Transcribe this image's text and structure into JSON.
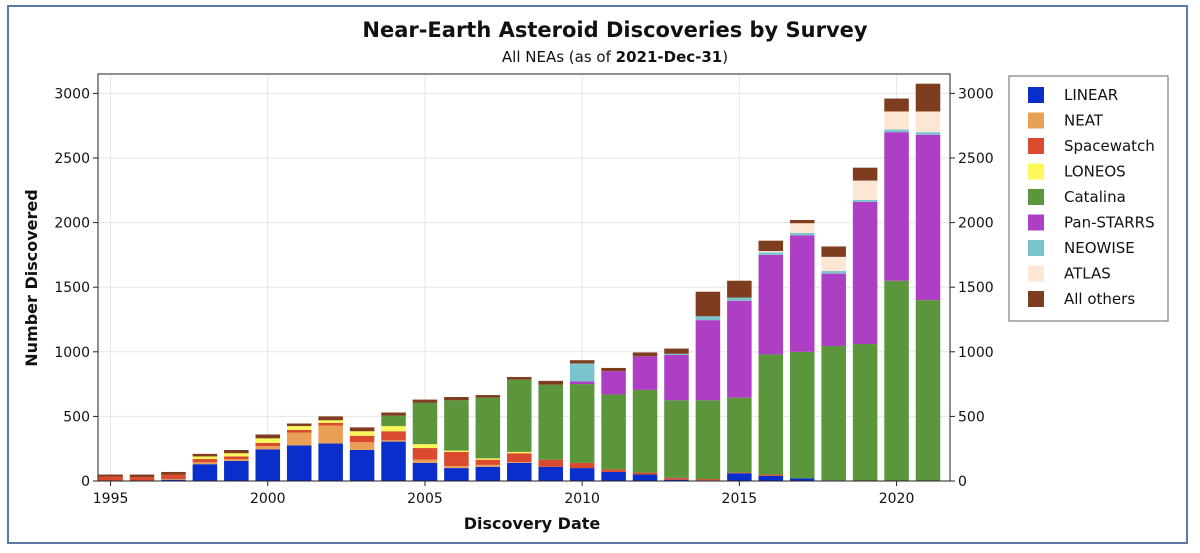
{
  "chart_data": {
    "type": "bar",
    "stacked": true,
    "title": "Near-Earth Asteroid Discoveries by Survey",
    "subtitle_prefix": "All NEAs (as of ",
    "subtitle_date": "2021-Dec-31",
    "subtitle_suffix": ")",
    "xlabel": "Discovery Date",
    "ylabel": "Number Discovered",
    "xlim": [
      1994.6,
      2021.7
    ],
    "ylim": [
      0,
      3150
    ],
    "x_ticks": [
      "1995",
      "2000",
      "2005",
      "2010",
      "2015",
      "2020"
    ],
    "y_ticks": [
      "0",
      "500",
      "1000",
      "1500",
      "2000",
      "2500",
      "3000"
    ],
    "y_ticks_right": [
      "0",
      "500",
      "1000",
      "1500",
      "2000",
      "2500",
      "3000"
    ],
    "grid": true,
    "legend_position": "right",
    "x": [
      1995,
      1996,
      1997,
      1998,
      1999,
      2000,
      2001,
      2002,
      2003,
      2004,
      2005,
      2006,
      2007,
      2008,
      2009,
      2010,
      2011,
      2012,
      2013,
      2014,
      2015,
      2016,
      2017,
      2018,
      2019,
      2020,
      2021
    ],
    "series": [
      {
        "name": "LINEAR",
        "color": "#0a2ecb",
        "values": [
          0,
          0,
          10,
          130,
          155,
          245,
          275,
          290,
          240,
          305,
          140,
          100,
          110,
          140,
          110,
          100,
          70,
          50,
          10,
          5,
          60,
          40,
          20,
          5,
          0,
          0,
          0
        ]
      },
      {
        "name": "NEAT",
        "color": "#e9a056",
        "values": [
          0,
          0,
          5,
          15,
          15,
          25,
          100,
          140,
          60,
          10,
          25,
          15,
          15,
          5,
          0,
          0,
          0,
          0,
          0,
          0,
          0,
          0,
          0,
          0,
          0,
          0,
          0
        ]
      },
      {
        "name": "Spacewatch",
        "color": "#d94a2e",
        "values": [
          35,
          30,
          35,
          25,
          20,
          25,
          20,
          20,
          50,
          70,
          90,
          110,
          40,
          70,
          55,
          40,
          20,
          15,
          15,
          10,
          5,
          10,
          0,
          0,
          0,
          0,
          0
        ]
      },
      {
        "name": "LONEOS",
        "color": "#fbf85a",
        "values": [
          0,
          0,
          0,
          20,
          25,
          35,
          30,
          20,
          35,
          40,
          30,
          10,
          10,
          10,
          0,
          0,
          0,
          0,
          0,
          0,
          0,
          0,
          0,
          0,
          0,
          0,
          0
        ]
      },
      {
        "name": "Catalina",
        "color": "#5b963c",
        "values": [
          0,
          0,
          0,
          0,
          0,
          0,
          0,
          0,
          0,
          80,
          320,
          390,
          470,
          560,
          580,
          610,
          580,
          640,
          600,
          610,
          580,
          930,
          980,
          1040,
          1060,
          1550,
          1400
        ]
      },
      {
        "name": "Pan-STARRS",
        "color": "#ae3fc4",
        "values": [
          0,
          0,
          0,
          0,
          0,
          0,
          0,
          0,
          0,
          0,
          0,
          0,
          0,
          0,
          0,
          20,
          180,
          260,
          350,
          620,
          750,
          770,
          900,
          560,
          1100,
          1150,
          1280
        ]
      },
      {
        "name": "NEOWISE",
        "color": "#7cc4cc",
        "values": [
          0,
          0,
          0,
          0,
          0,
          0,
          0,
          0,
          0,
          0,
          0,
          0,
          0,
          0,
          0,
          140,
          0,
          0,
          10,
          30,
          25,
          20,
          20,
          20,
          15,
          20,
          20
        ]
      },
      {
        "name": "ATLAS",
        "color": "#fbe7d4",
        "values": [
          0,
          0,
          0,
          0,
          0,
          0,
          0,
          0,
          0,
          0,
          0,
          0,
          0,
          0,
          0,
          0,
          0,
          0,
          0,
          0,
          0,
          10,
          75,
          110,
          150,
          140,
          160
        ]
      },
      {
        "name": "All others",
        "color": "#7d3d1e",
        "values": [
          15,
          20,
          20,
          20,
          25,
          30,
          20,
          30,
          30,
          25,
          25,
          25,
          20,
          20,
          30,
          25,
          25,
          30,
          40,
          190,
          130,
          80,
          25,
          80,
          100,
          100,
          215
        ]
      }
    ]
  }
}
